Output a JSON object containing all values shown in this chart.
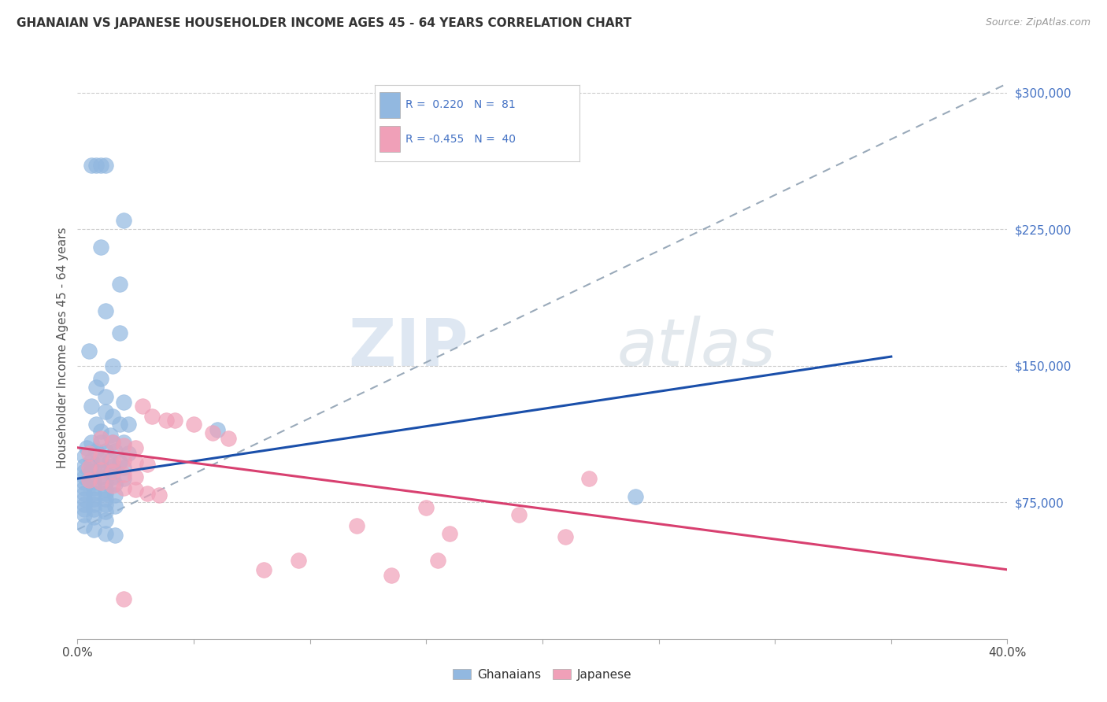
{
  "title": "GHANAIAN VS JAPANESE HOUSEHOLDER INCOME AGES 45 - 64 YEARS CORRELATION CHART",
  "source": "Source: ZipAtlas.com",
  "ylabel": "Householder Income Ages 45 - 64 years",
  "xlim": [
    0.0,
    0.4
  ],
  "ylim": [
    0,
    320000
  ],
  "yticks": [
    0,
    75000,
    150000,
    225000,
    300000
  ],
  "ytick_labels": [
    "",
    "$75,000",
    "$150,000",
    "$225,000",
    "$300,000"
  ],
  "xticks": [
    0.0,
    0.05,
    0.1,
    0.15,
    0.2,
    0.25,
    0.3,
    0.35,
    0.4
  ],
  "xtick_labels": [
    "0.0%",
    "",
    "",
    "",
    "",
    "",
    "",
    "",
    "40.0%"
  ],
  "r_ghanaian": 0.22,
  "n_ghanaian": 81,
  "r_japanese": -0.455,
  "n_japanese": 40,
  "ghanaian_color": "#92b8e0",
  "japanese_color": "#f0a0b8",
  "ghanaian_line_color": "#1a4faa",
  "japanese_line_color": "#d84070",
  "trendline_dashed_color": "#9aaaba",
  "ghanaian_trendline": [
    [
      0.0,
      88000
    ],
    [
      0.35,
      155000
    ]
  ],
  "japanese_trendline": [
    [
      0.0,
      105000
    ],
    [
      0.4,
      38000
    ]
  ],
  "dashed_trendline": [
    [
      0.0,
      60000
    ],
    [
      0.4,
      305000
    ]
  ],
  "ghanaian_scatter": [
    [
      0.006,
      260000
    ],
    [
      0.008,
      260000
    ],
    [
      0.01,
      260000
    ],
    [
      0.012,
      260000
    ],
    [
      0.02,
      230000
    ],
    [
      0.01,
      215000
    ],
    [
      0.018,
      195000
    ],
    [
      0.012,
      180000
    ],
    [
      0.018,
      168000
    ],
    [
      0.005,
      158000
    ],
    [
      0.015,
      150000
    ],
    [
      0.01,
      143000
    ],
    [
      0.008,
      138000
    ],
    [
      0.012,
      133000
    ],
    [
      0.02,
      130000
    ],
    [
      0.006,
      128000
    ],
    [
      0.012,
      125000
    ],
    [
      0.015,
      122000
    ],
    [
      0.008,
      118000
    ],
    [
      0.018,
      118000
    ],
    [
      0.022,
      118000
    ],
    [
      0.01,
      114000
    ],
    [
      0.014,
      112000
    ],
    [
      0.006,
      108000
    ],
    [
      0.01,
      108000
    ],
    [
      0.015,
      108000
    ],
    [
      0.02,
      108000
    ],
    [
      0.004,
      105000
    ],
    [
      0.008,
      103000
    ],
    [
      0.012,
      103000
    ],
    [
      0.016,
      103000
    ],
    [
      0.022,
      102000
    ],
    [
      0.003,
      100000
    ],
    [
      0.006,
      98000
    ],
    [
      0.01,
      98000
    ],
    [
      0.014,
      98000
    ],
    [
      0.018,
      97000
    ],
    [
      0.003,
      95000
    ],
    [
      0.006,
      95000
    ],
    [
      0.01,
      95000
    ],
    [
      0.015,
      95000
    ],
    [
      0.02,
      94000
    ],
    [
      0.003,
      92000
    ],
    [
      0.006,
      92000
    ],
    [
      0.01,
      92000
    ],
    [
      0.014,
      91000
    ],
    [
      0.003,
      89000
    ],
    [
      0.006,
      89000
    ],
    [
      0.01,
      89000
    ],
    [
      0.015,
      89000
    ],
    [
      0.02,
      88000
    ],
    [
      0.003,
      86000
    ],
    [
      0.007,
      86000
    ],
    [
      0.012,
      86000
    ],
    [
      0.016,
      85000
    ],
    [
      0.003,
      83000
    ],
    [
      0.007,
      83000
    ],
    [
      0.012,
      82000
    ],
    [
      0.003,
      80000
    ],
    [
      0.007,
      80000
    ],
    [
      0.012,
      80000
    ],
    [
      0.016,
      79000
    ],
    [
      0.003,
      77000
    ],
    [
      0.007,
      77000
    ],
    [
      0.012,
      77000
    ],
    [
      0.003,
      74000
    ],
    [
      0.007,
      74000
    ],
    [
      0.012,
      74000
    ],
    [
      0.016,
      73000
    ],
    [
      0.003,
      71000
    ],
    [
      0.007,
      71000
    ],
    [
      0.012,
      70000
    ],
    [
      0.003,
      68000
    ],
    [
      0.007,
      67000
    ],
    [
      0.012,
      65000
    ],
    [
      0.003,
      62000
    ],
    [
      0.007,
      60000
    ],
    [
      0.012,
      58000
    ],
    [
      0.016,
      57000
    ],
    [
      0.24,
      78000
    ],
    [
      0.06,
      115000
    ]
  ],
  "japanese_scatter": [
    [
      0.028,
      128000
    ],
    [
      0.032,
      122000
    ],
    [
      0.038,
      120000
    ],
    [
      0.042,
      120000
    ],
    [
      0.05,
      118000
    ],
    [
      0.058,
      113000
    ],
    [
      0.065,
      110000
    ],
    [
      0.01,
      110000
    ],
    [
      0.015,
      108000
    ],
    [
      0.02,
      106000
    ],
    [
      0.025,
      105000
    ],
    [
      0.005,
      102000
    ],
    [
      0.01,
      100000
    ],
    [
      0.015,
      98000
    ],
    [
      0.02,
      98000
    ],
    [
      0.025,
      97000
    ],
    [
      0.03,
      96000
    ],
    [
      0.005,
      94000
    ],
    [
      0.01,
      93000
    ],
    [
      0.015,
      92000
    ],
    [
      0.02,
      90000
    ],
    [
      0.025,
      89000
    ],
    [
      0.005,
      87000
    ],
    [
      0.01,
      86000
    ],
    [
      0.015,
      84000
    ],
    [
      0.02,
      83000
    ],
    [
      0.025,
      82000
    ],
    [
      0.03,
      80000
    ],
    [
      0.035,
      79000
    ],
    [
      0.22,
      88000
    ],
    [
      0.15,
      72000
    ],
    [
      0.19,
      68000
    ],
    [
      0.12,
      62000
    ],
    [
      0.16,
      58000
    ],
    [
      0.21,
      56000
    ],
    [
      0.095,
      43000
    ],
    [
      0.155,
      43000
    ],
    [
      0.08,
      38000
    ],
    [
      0.135,
      35000
    ],
    [
      0.02,
      22000
    ]
  ]
}
